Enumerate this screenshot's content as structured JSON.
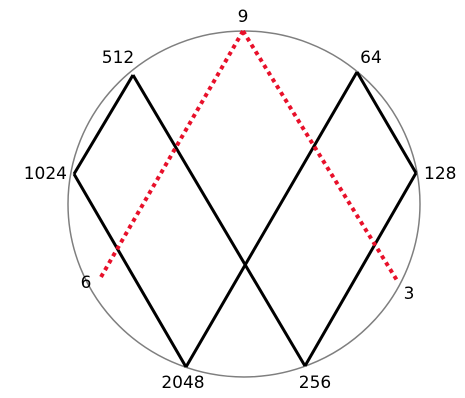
{
  "diagram": {
    "labels": {
      "top": "9",
      "upper_left": "512",
      "upper_right": "64",
      "left": "1024",
      "right": "128",
      "lower_left": "6",
      "lower_right": "3",
      "bottom_left": "2048",
      "bottom_right": "256"
    },
    "colors": {
      "circle": "#7f7f7f",
      "solid_path": "#000000",
      "dotted_path": "#e8102a"
    },
    "edges": {
      "solid": [
        [
          "upper_left",
          "left"
        ],
        [
          "left",
          "bottom_left"
        ],
        [
          "bottom_left",
          "upper_right"
        ],
        [
          "upper_right",
          "right"
        ],
        [
          "right",
          "bottom_right"
        ],
        [
          "bottom_right",
          "upper_left"
        ]
      ],
      "dotted": [
        [
          "lower_left",
          "top"
        ],
        [
          "top",
          "lower_right"
        ]
      ]
    }
  }
}
